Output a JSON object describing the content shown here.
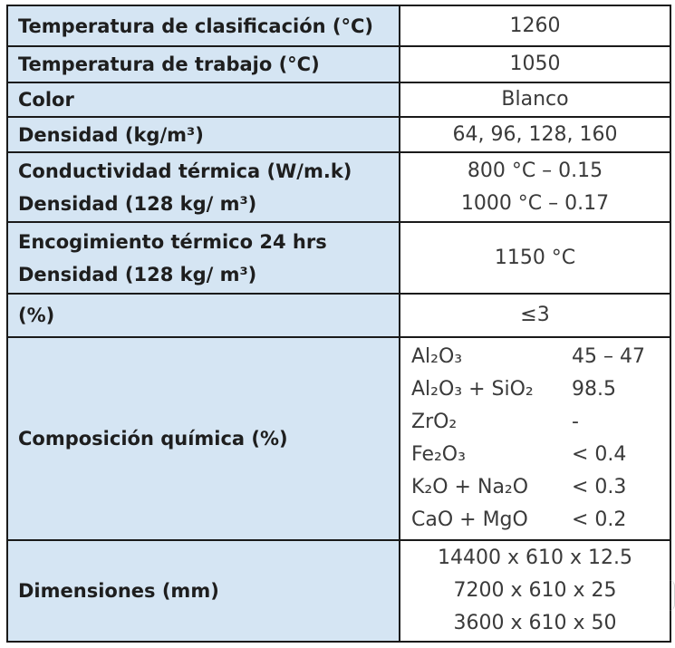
{
  "rows": [
    {
      "label": "Temperatura de clasificación (°C)",
      "value": "1260"
    },
    {
      "label": "Temperatura de trabajo (°C)",
      "value": "1050"
    },
    {
      "label": "Color",
      "value": "Blanco"
    },
    {
      "label": "Densidad (kg/m³)",
      "value": "64, 96, 128, 160"
    },
    {
      "label_lines": [
        "Conductividad térmica (W/m.k)",
        "Densidad (128 kg/ m³)"
      ],
      "value_lines": [
        "800 °C – 0.15",
        "1000 °C – 0.17"
      ]
    },
    {
      "label_lines": [
        "Encogimiento térmico 24 hrs",
        "Densidad (128 kg/ m³)"
      ],
      "value": "1150 °C"
    },
    {
      "label": "(%)",
      "value": "≤3"
    }
  ],
  "composition": {
    "label": "Composición química (%)",
    "items": [
      {
        "name": "Al₂O₃",
        "value": "45 – 47"
      },
      {
        "name": "Al₂O₃ + SiO₂",
        "value": "98.5"
      },
      {
        "name": "ZrO₂",
        "value": "-"
      },
      {
        "name": "Fe₂O₃",
        "value": "< 0.4"
      },
      {
        "name": "K₂O + Na₂O",
        "value": "< 0.3"
      },
      {
        "name": "CaO + MgO",
        "value": "< 0.2"
      }
    ]
  },
  "dimensions": {
    "label": "Dimensiones (mm)",
    "values": [
      "14400 x 610 x 12.5",
      "7200 x 610 x 25",
      "3600 x 610 x 50"
    ]
  }
}
